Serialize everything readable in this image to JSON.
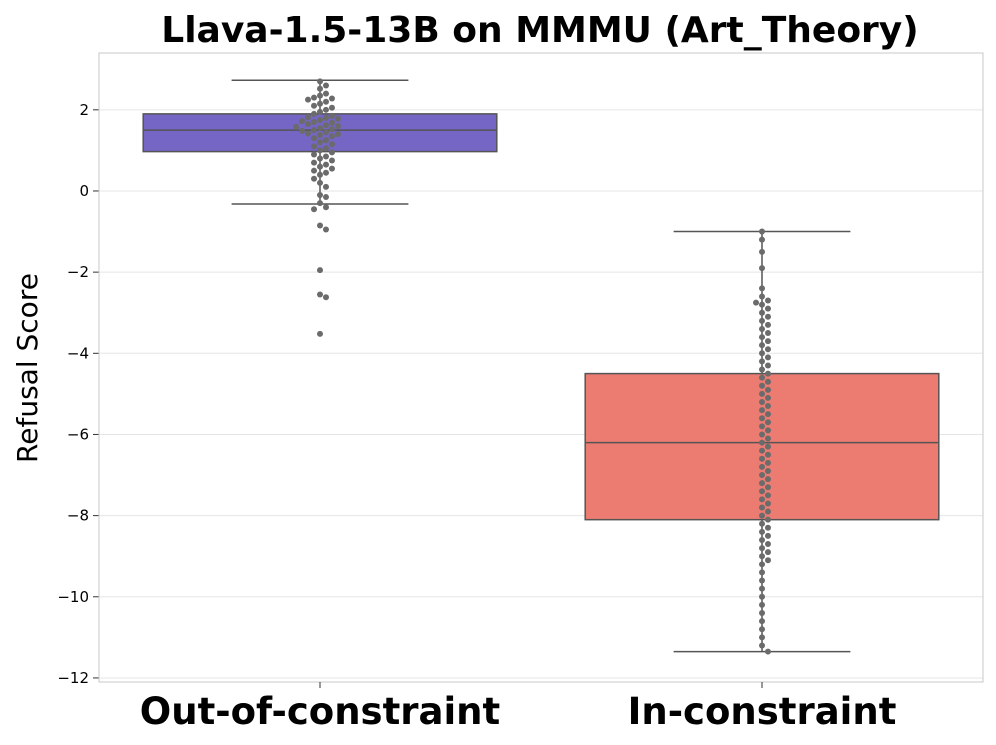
{
  "chart_data": {
    "type": "box",
    "title": "Llava-1.5-13B on MMMU (Art_Theory)",
    "ylabel": "Refusal Score",
    "xlabel": "",
    "ylim": [
      -12.1,
      3.4
    ],
    "yticks": [
      2,
      0,
      -2,
      -4,
      -6,
      -8,
      -10,
      -12
    ],
    "ytick_labels": [
      "2",
      "0",
      "−2",
      "−4",
      "−6",
      "−8",
      "−10",
      "−12"
    ],
    "grid": "horizontal",
    "categories": [
      "Out-of-constraint",
      "In-constraint"
    ],
    "boxes": [
      {
        "category": "Out-of-constraint",
        "color": "#7565C4",
        "whisker_low": -0.32,
        "q1": 0.97,
        "median": 1.5,
        "q3": 1.9,
        "whisker_high": 2.73,
        "outliers": [
          -0.45,
          -0.4,
          -0.15,
          -0.1,
          -0.85,
          -0.95,
          -1.95,
          -2.55,
          -2.62,
          -3.52
        ],
        "points": [
          2.7,
          2.6,
          2.52,
          2.4,
          2.35,
          2.3,
          2.28,
          2.25,
          2.2,
          2.15,
          2.1,
          2.05,
          2.0,
          1.95,
          1.9,
          1.85,
          1.82,
          1.8,
          1.78,
          1.75,
          1.72,
          1.7,
          1.68,
          1.65,
          1.62,
          1.6,
          1.58,
          1.55,
          1.52,
          1.5,
          1.48,
          1.45,
          1.42,
          1.4,
          1.38,
          1.35,
          1.3,
          1.25,
          1.2,
          1.15,
          1.1,
          1.05,
          1.0,
          0.95,
          0.9,
          0.85,
          0.8,
          0.75,
          0.7,
          0.65,
          0.6,
          0.55,
          0.5,
          0.45,
          0.4,
          0.3,
          0.2,
          0.1,
          -0.1,
          -0.15,
          -0.3,
          -0.4,
          -0.45,
          -0.85,
          -0.95,
          -1.95,
          -2.55,
          -2.62,
          -3.52
        ]
      },
      {
        "category": "In-constraint",
        "color": "#EC7C72",
        "whisker_low": -11.35,
        "q1": -8.1,
        "median": -6.2,
        "q3": -4.5,
        "whisker_high": -1.0,
        "outliers": [],
        "points": [
          -1.0,
          -1.2,
          -1.5,
          -1.9,
          -2.4,
          -2.6,
          -2.7,
          -2.75,
          -2.8,
          -2.9,
          -3.0,
          -3.1,
          -3.2,
          -3.3,
          -3.4,
          -3.5,
          -3.6,
          -3.7,
          -3.8,
          -3.9,
          -4.0,
          -4.1,
          -4.2,
          -4.3,
          -4.4,
          -4.5,
          -4.6,
          -4.7,
          -4.8,
          -4.9,
          -5.0,
          -5.1,
          -5.2,
          -5.3,
          -5.4,
          -5.5,
          -5.6,
          -5.7,
          -5.8,
          -5.9,
          -6.0,
          -6.1,
          -6.2,
          -6.3,
          -6.4,
          -6.5,
          -6.6,
          -6.7,
          -6.8,
          -6.9,
          -7.0,
          -7.1,
          -7.2,
          -7.3,
          -7.4,
          -7.5,
          -7.6,
          -7.7,
          -7.8,
          -7.9,
          -8.0,
          -8.1,
          -8.2,
          -8.3,
          -8.4,
          -8.5,
          -8.6,
          -8.7,
          -8.8,
          -8.9,
          -9.0,
          -9.1,
          -9.2,
          -9.4,
          -9.6,
          -9.8,
          -10.0,
          -10.2,
          -10.4,
          -10.6,
          -10.8,
          -11.0,
          -11.2,
          -11.35
        ]
      }
    ]
  }
}
